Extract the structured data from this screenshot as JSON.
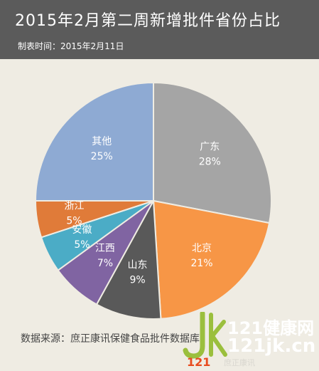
{
  "header": {
    "title": "2015年2月第二周新增批件省份占比",
    "subtitle": "制表时间：2015年2月11日"
  },
  "chart_data": {
    "type": "pie",
    "title": "2015年2月第二周新增批件省份占比",
    "subtitle": "制表时间：2015年2月11日",
    "slices": [
      {
        "label": "广东",
        "percent": 28,
        "value_label": "28%",
        "color": "#a5a5a5"
      },
      {
        "label": "北京",
        "percent": 21,
        "value_label": "21%",
        "color": "#f79646"
      },
      {
        "label": "山东",
        "percent": 9,
        "value_label": "9%",
        "color": "#595959"
      },
      {
        "label": "江西",
        "percent": 7,
        "value_label": "7%",
        "color": "#8064a2"
      },
      {
        "label": "安徽",
        "percent": 5,
        "value_label": "5%",
        "color": "#4bacc6"
      },
      {
        "label": "浙江",
        "percent": 5,
        "value_label": "5%",
        "color": "#e07b39"
      },
      {
        "label": "其他",
        "percent": 25,
        "value_label": "25%",
        "color": "#8eaad3"
      }
    ]
  },
  "footer": {
    "source": "数据来源：庶正康讯保健食品批件数据库"
  },
  "watermark": {
    "site_name": "121健康网",
    "url": "121jk.cn",
    "logo_text": "JK121",
    "small_text": "庶正康讯"
  }
}
